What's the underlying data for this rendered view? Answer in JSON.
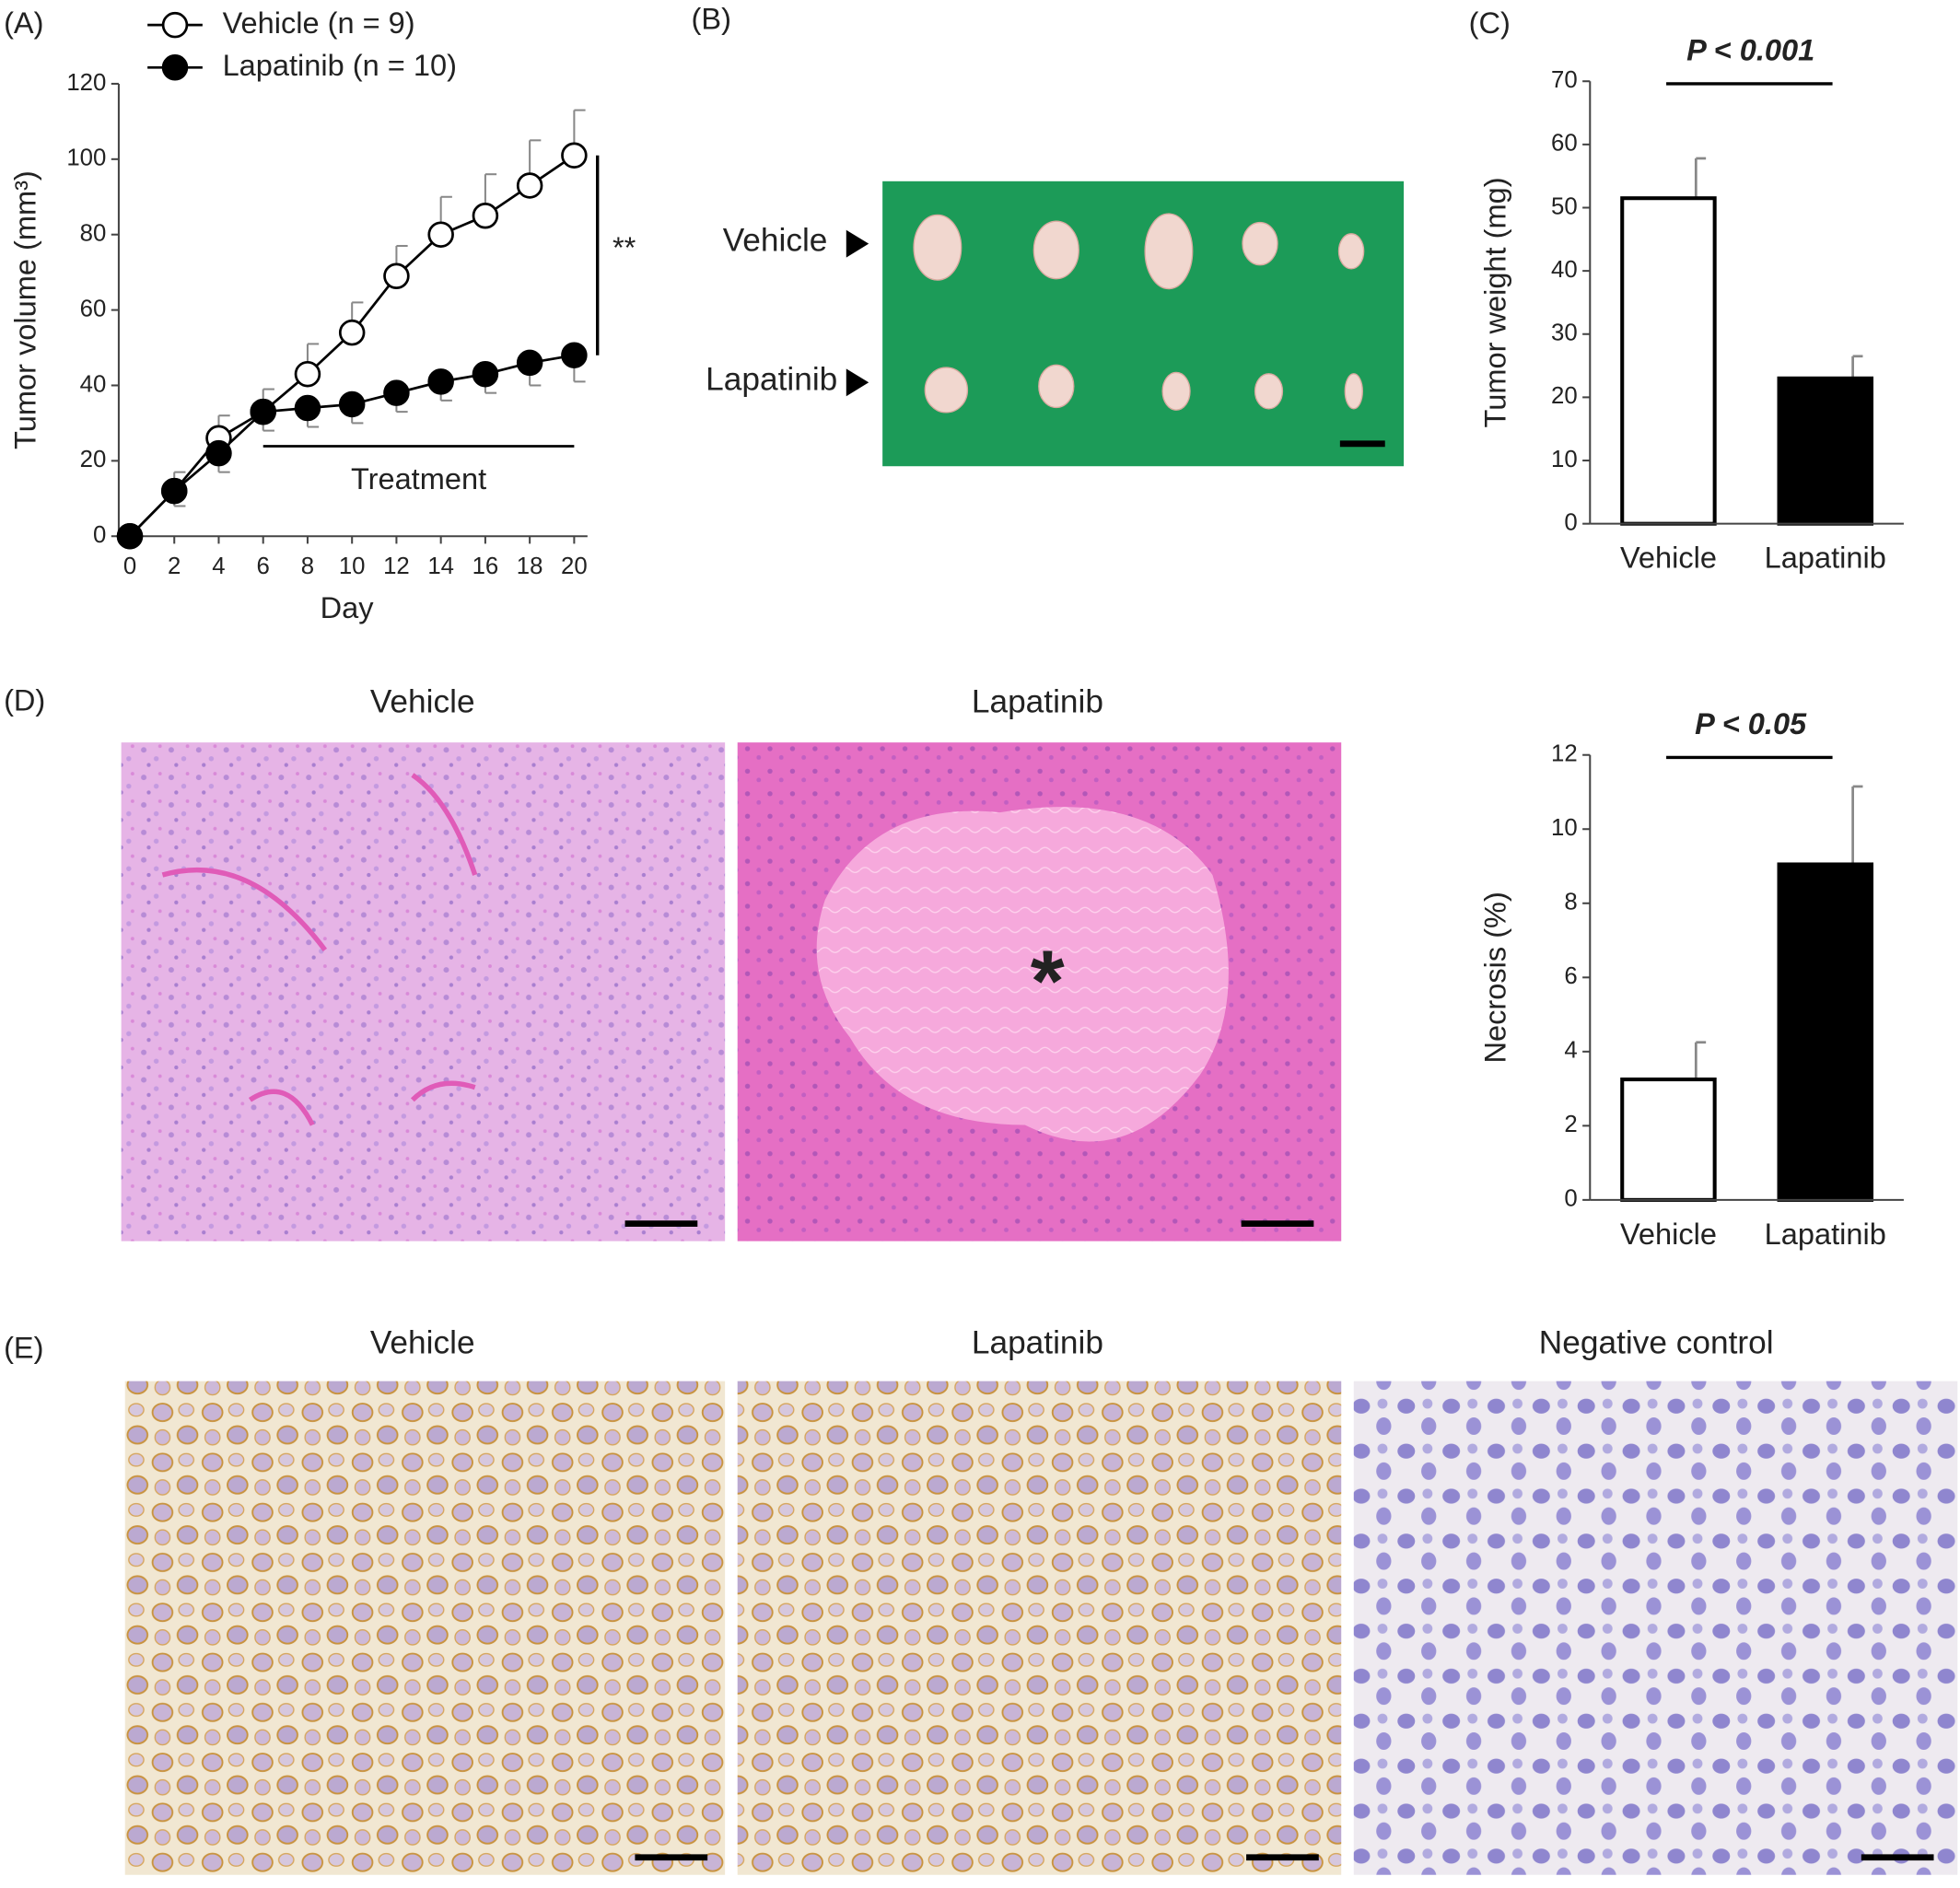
{
  "chart_data": [
    {
      "type": "line",
      "panel_label": "(A)",
      "x_label": "Day",
      "y_label": "Tumor volume (mm³)",
      "x": [
        0,
        2,
        4,
        6,
        8,
        10,
        12,
        14,
        16,
        18,
        20
      ],
      "xlim": [
        -0.5,
        20.6
      ],
      "xticks": [
        0,
        2,
        4,
        6,
        8,
        10,
        12,
        14,
        16,
        18,
        20
      ],
      "ylim": [
        0,
        120
      ],
      "yticks": [
        0,
        20,
        40,
        60,
        80,
        100,
        120
      ],
      "line_color": "#000000",
      "error_color": "#888888",
      "series": [
        {
          "name": "Vehicle (n = 9)",
          "color": "#ffffff",
          "error_direction": "up",
          "values": [
            0,
            12,
            26,
            33,
            43,
            54,
            69,
            80,
            85,
            93,
            101
          ],
          "errors": [
            0,
            5,
            6,
            6,
            8,
            8,
            8,
            10,
            11,
            12,
            12
          ]
        },
        {
          "name": "Lapatinib (n = 10)",
          "color": "#000000",
          "error_direction": "down",
          "values": [
            0,
            12,
            22,
            33,
            34,
            35,
            38,
            41,
            43,
            46,
            48
          ],
          "errors": [
            0,
            4,
            5,
            5,
            5,
            5,
            5,
            5,
            5,
            6,
            7
          ]
        }
      ],
      "annotations": [
        {
          "text": "Treatment",
          "x": [
            6,
            20
          ]
        },
        {
          "text": "**"
        }
      ]
    },
    {
      "type": "bar",
      "panel_label": "(C)",
      "y_label": "Tumor weight (mg)",
      "categories": [
        "Vehicle",
        "Lapatinib"
      ],
      "values": [
        51.5,
        23
      ],
      "errors": [
        6.3,
        3.5
      ],
      "colors": [
        "#ffffff",
        "#000000"
      ],
      "error_color": "#888888",
      "ylim": [
        0,
        70
      ],
      "yticks": [
        0,
        10,
        20,
        30,
        40,
        50,
        60,
        70
      ],
      "annotation": "P < 0.001"
    },
    {
      "type": "bar",
      "y_label": "Necrosis (%)",
      "categories": [
        "Vehicle",
        "Lapatinib"
      ],
      "values": [
        3.25,
        9.05
      ],
      "errors": [
        1.0,
        2.1
      ],
      "colors": [
        "#ffffff",
        "#000000"
      ],
      "error_color": "#888888",
      "ylim": [
        0,
        12
      ],
      "yticks": [
        0,
        2,
        4,
        6,
        8,
        10,
        12
      ],
      "annotation": "P < 0.05"
    }
  ],
  "photos": {
    "B": {
      "label": "(B)",
      "rows": [
        "Vehicle",
        "Lapatinib"
      ]
    },
    "D": {
      "label": "(D)",
      "titles": [
        "Vehicle",
        "Lapatinib"
      ],
      "asterisk": "*"
    },
    "E": {
      "label": "(E)",
      "titles": [
        "Vehicle",
        "Lapatinib",
        "Negative control"
      ]
    }
  }
}
